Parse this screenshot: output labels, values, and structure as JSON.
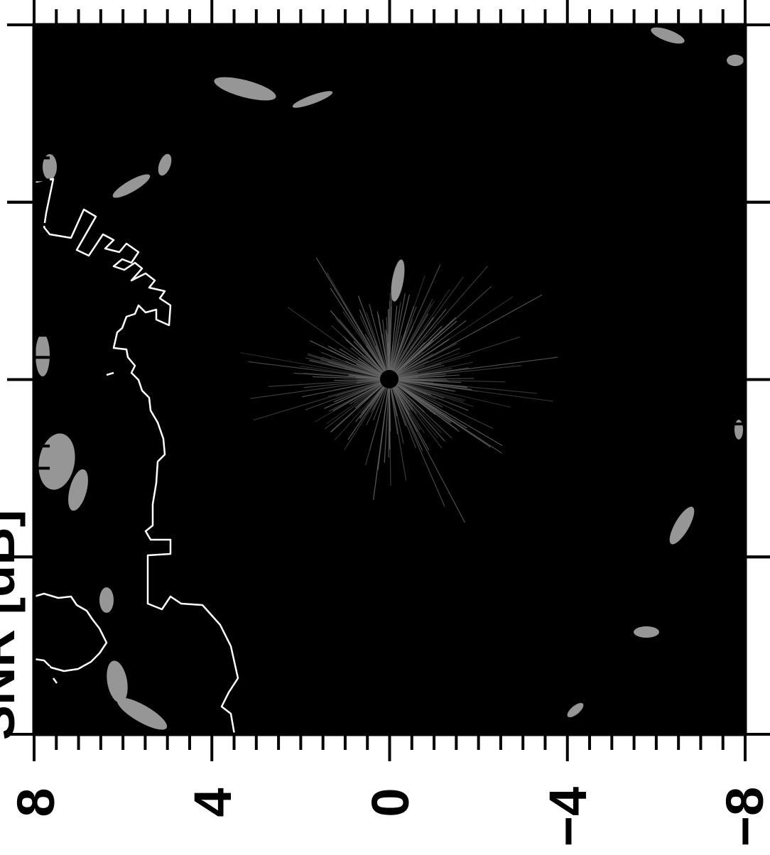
{
  "figure": {
    "x_tick_labels": [
      "8",
      "4",
      "0",
      "−4",
      "−8"
    ],
    "y_axis_label_partial": "SNR [dB]",
    "colors": {
      "background": "#000000",
      "frame": "#000000",
      "contour": "#ffffff",
      "clutter": "#bdbdbd",
      "page": "#ffffff"
    }
  }
}
